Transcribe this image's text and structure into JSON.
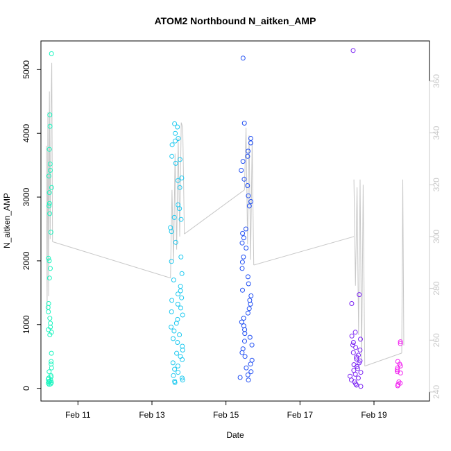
{
  "chart_data": {
    "type": "scatter",
    "title": "ATOM2 Northbound N_aitken_AMP",
    "xlabel": "Date",
    "ylabel": "N_aitken_AMP",
    "x_ticks": [
      "Feb 11",
      "Feb 13",
      "Feb 15",
      "Feb 17",
      "Feb 19"
    ],
    "xlim": [
      "2024-02-10T00:00",
      "2024-02-20T12:00"
    ],
    "ylim": [
      -200,
      5450
    ],
    "y_ticks": [
      0,
      1000,
      2000,
      3000,
      4000,
      5000
    ],
    "y2_ticks": [
      240,
      260,
      280,
      300,
      320,
      340,
      360
    ],
    "y2lim": [
      236.5,
      375.5
    ],
    "grid": false,
    "legend": "none",
    "colors": {
      "line": "#c8c8c8",
      "right_axis": "#c8c8c8",
      "clusters": [
        "#19f5bf",
        "#1dc9f0",
        "#1f4ef3",
        "#7a22f3",
        "#f21ff0"
      ]
    },
    "series": [
      {
        "marker": "open-circle",
        "color": "#19f5bf",
        "x_range": [
          "2024-02-10T04:30",
          "2024-02-10T07:00"
        ],
        "y_min": 60,
        "y_max": 5250,
        "points": [
          5250,
          4290,
          4110,
          3750,
          3520,
          3420,
          3330,
          3150,
          3070,
          2900,
          2860,
          2740,
          2450,
          2040,
          2000,
          1880,
          1730,
          1330,
          1270,
          1200,
          1100,
          1020,
          960,
          920,
          880,
          840,
          550,
          420,
          380,
          320,
          260,
          200,
          180,
          160,
          140,
          120,
          110,
          100,
          90,
          80,
          70,
          60
        ]
      },
      {
        "marker": "open-circle",
        "color": "#1dc9f0",
        "x_range": [
          "2024-02-13T12:00",
          "2024-02-13T20:00"
        ],
        "y_min": 90,
        "y_max": 4150,
        "points": [
          4150,
          4100,
          4000,
          3920,
          3880,
          3820,
          3640,
          3590,
          3530,
          3300,
          3260,
          3150,
          2880,
          2820,
          2680,
          2650,
          2520,
          2460,
          2290,
          2060,
          1990,
          1800,
          1700,
          1600,
          1530,
          1480,
          1420,
          1380,
          1320,
          1260,
          1200,
          1150,
          1080,
          1020,
          960,
          900,
          840,
          780,
          720,
          660,
          600,
          550,
          500,
          450,
          400,
          350,
          300,
          250,
          200,
          160,
          130,
          110,
          90
        ]
      },
      {
        "marker": "open-circle",
        "color": "#1f4ef3",
        "x_range": [
          "2024-02-15T09:00",
          "2024-02-15T17:00"
        ],
        "y_min": 130,
        "y_max": 5180,
        "points": [
          5180,
          4160,
          3920,
          3850,
          3720,
          3640,
          3560,
          3420,
          3280,
          3180,
          3020,
          2930,
          2860,
          2500,
          2430,
          2360,
          2280,
          2200,
          2060,
          1980,
          1880,
          1750,
          1640,
          1540,
          1450,
          1380,
          1320,
          1250,
          1180,
          1100,
          1040,
          980,
          920,
          860,
          800,
          740,
          680,
          620,
          560,
          500,
          440,
          380,
          320,
          260,
          210,
          170,
          130
        ]
      },
      {
        "marker": "open-circle",
        "color": "#7a22f3",
        "x_range": [
          "2024-02-18T08:00",
          "2024-02-18T16:00"
        ],
        "y_min": 30,
        "y_max": 5300,
        "points": [
          5300,
          1470,
          1330,
          880,
          820,
          770,
          720,
          680,
          640,
          600,
          560,
          520,
          490,
          460,
          430,
          400,
          370,
          340,
          310,
          280,
          250,
          220,
          190,
          160,
          130,
          100,
          70,
          50,
          30
        ]
      },
      {
        "marker": "open-circle",
        "color": "#f21ff0",
        "x_range": [
          "2024-02-19T15:00",
          "2024-02-19T17:30"
        ],
        "y_min": 40,
        "y_max": 730,
        "points": [
          730,
          700,
          420,
          380,
          350,
          320,
          290,
          260,
          240,
          100,
          80,
          60,
          40
        ]
      },
      {
        "type": "line",
        "axis": "right",
        "color": "#c8c8c8",
        "segments": [
          {
            "x": [
              "2024-02-10T03:30",
              "2024-02-10T04:00",
              "2024-02-10T04:30",
              "2024-02-10T05:00",
              "2024-02-10T05:30",
              "2024-02-10T06:00",
              "2024-02-10T06:30",
              "2024-02-10T07:00",
              "2024-02-10T07:30"
            ],
            "y": [
              335,
              272,
              348,
              277,
              356,
              299,
              346,
              367,
              298
            ]
          },
          {
            "x": [
              "2024-02-10T07:30",
              "2024-02-13T12:00"
            ],
            "y": [
              298,
              284
            ]
          },
          {
            "x": [
              "2024-02-13T12:00",
              "2024-02-13T13:00",
              "2024-02-13T14:00",
              "2024-02-13T15:00",
              "2024-02-13T16:00",
              "2024-02-13T17:00",
              "2024-02-13T18:00",
              "2024-02-13T19:00",
              "2024-02-13T20:00",
              "2024-02-13T21:00"
            ],
            "y": [
              284,
              318,
              290,
              332,
              295,
              338,
              300,
              344,
              342,
              301
            ]
          },
          {
            "x": [
              "2024-02-13T21:00",
              "2024-02-15T12:00"
            ],
            "y": [
              301,
              318
            ]
          },
          {
            "x": [
              "2024-02-15T12:00",
              "2024-02-15T13:00",
              "2024-02-15T14:00",
              "2024-02-15T15:00",
              "2024-02-15T16:00",
              "2024-02-15T17:00",
              "2024-02-15T18:00"
            ],
            "y": [
              318,
              342,
              297,
              339,
              291,
              337,
              289
            ]
          },
          {
            "x": [
              "2024-02-15T18:00",
              "2024-02-18T11:00"
            ],
            "y": [
              289,
              300
            ]
          },
          {
            "x": [
              "2024-02-18T11:00",
              "2024-02-18T12:00",
              "2024-02-18T13:00",
              "2024-02-18T14:00",
              "2024-02-18T15:00",
              "2024-02-18T16:00",
              "2024-02-18T17:00",
              "2024-02-18T18:00"
            ],
            "y": [
              322,
              281,
              319,
              262,
              322,
              252,
              320,
              250
            ]
          },
          {
            "x": [
              "2024-02-18T18:00",
              "2024-02-19T18:00"
            ],
            "y": [
              250,
              255
            ]
          },
          {
            "x": [
              "2024-02-19T18:00",
              "2024-02-19T18:40",
              "2024-02-19T19:20"
            ],
            "y": [
              255,
              322,
              258
            ]
          }
        ]
      }
    ]
  }
}
